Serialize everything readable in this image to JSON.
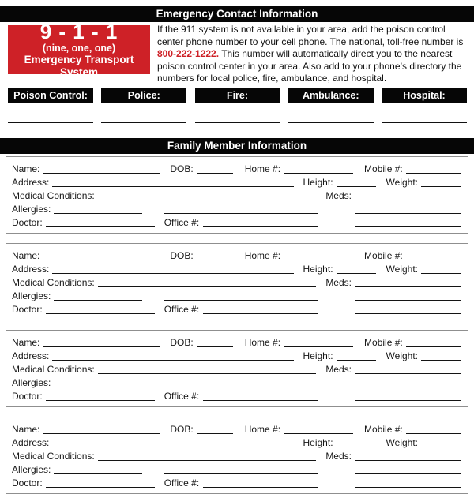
{
  "colors": {
    "accent_red": "#ce2127",
    "bar_black": "#060606"
  },
  "emergency": {
    "header": "Emergency Contact Information",
    "badge": {
      "number": "9 - 1 - 1",
      "phonetic": "(nine, one, one)",
      "subtitle": "Emergency Transport System"
    },
    "paragraph": {
      "before": "If the 911 system is not available in your area, add the poison control center phone number to your cell phone. The national, toll-free number is ",
      "phone": "800-222-1222.",
      "after": " This number will automatically direct you to the nearest poison control center in your area. Also add to your phone’s directory the numbers for local police, fire, ambulance, and hospital."
    },
    "contacts": [
      {
        "label": "Poison Control:"
      },
      {
        "label": "Police:"
      },
      {
        "label": "Fire:"
      },
      {
        "label": "Ambulance:"
      },
      {
        "label": "Hospital:"
      }
    ]
  },
  "family": {
    "header": "Family Member Information",
    "member_count": 4,
    "labels": {
      "name": "Name:",
      "dob": "DOB:",
      "home": "Home #:",
      "mobile": "Mobile #:",
      "address": "Address:",
      "height": "Height:",
      "weight": "Weight:",
      "medical": "Medical Conditions:",
      "meds": "Meds:",
      "allergies": "Allergies:",
      "doctor": "Doctor:",
      "office": "Office #:"
    }
  }
}
